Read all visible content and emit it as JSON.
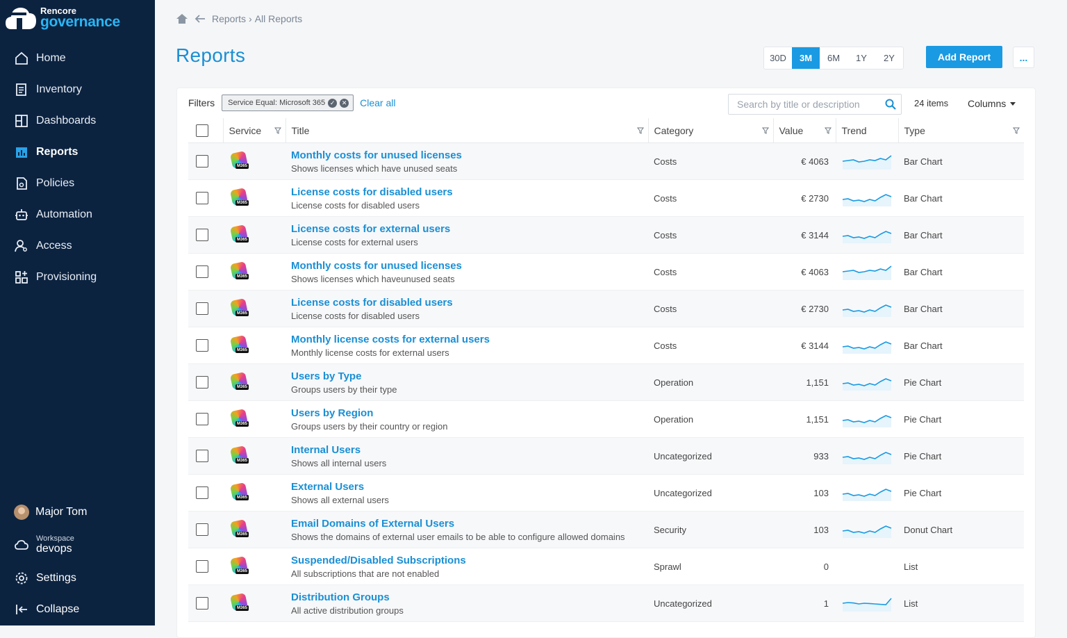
{
  "app": {
    "brand": "Rencore",
    "product": "governance"
  },
  "sidebar": {
    "items": [
      {
        "label": "Home",
        "icon": "home-icon"
      },
      {
        "label": "Inventory",
        "icon": "inventory-icon"
      },
      {
        "label": "Dashboards",
        "icon": "dashboards-icon"
      },
      {
        "label": "Reports",
        "icon": "reports-icon",
        "active": true
      },
      {
        "label": "Policies",
        "icon": "policies-icon"
      },
      {
        "label": "Automation",
        "icon": "automation-icon"
      },
      {
        "label": "Access",
        "icon": "access-icon"
      },
      {
        "label": "Provisioning",
        "icon": "provisioning-icon"
      }
    ],
    "user": "Major Tom",
    "workspace_label": "Workspace",
    "workspace_name": "devops",
    "settings": "Settings",
    "collapse": "Collapse"
  },
  "breadcrumb": {
    "items": [
      "Reports",
      "All Reports"
    ],
    "separator": "›"
  },
  "page": {
    "title": "Reports",
    "ranges": [
      "30D",
      "3M",
      "6M",
      "1Y",
      "2Y"
    ],
    "active_range": "3M",
    "add_button": "Add Report",
    "more_button": "..."
  },
  "toolbar": {
    "filters_label": "Filters",
    "filter_chip": "Service Equal: Microsoft 365",
    "clear_all": "Clear all",
    "search_placeholder": "Search by title or description",
    "item_count": "24 items",
    "columns_label": "Columns"
  },
  "table": {
    "headers": {
      "service": "Service",
      "title": "Title",
      "category": "Category",
      "value": "Value",
      "trend": "Trend",
      "type": "Type"
    },
    "service_badge": "M365",
    "rows": [
      {
        "title": "Monthly costs for unused licenses",
        "description": "Shows licenses which have unused seats",
        "category": "Costs",
        "value": "€ 4063",
        "type": "Bar Chart",
        "trend": [
          0.5,
          0.55,
          0.6,
          0.45,
          0.5,
          0.6,
          0.55,
          0.7,
          0.6,
          0.9
        ]
      },
      {
        "title": "License costs for disabled users",
        "description": "License costs for disabled users",
        "category": "Costs",
        "value": "€ 2730",
        "type": "Bar Chart",
        "trend": [
          0.4,
          0.45,
          0.3,
          0.35,
          0.25,
          0.4,
          0.3,
          0.55,
          0.75,
          0.6
        ]
      },
      {
        "title": "License costs for external users",
        "description": "License costs for external users",
        "category": "Costs",
        "value": "€ 3144",
        "type": "Bar Chart",
        "trend": [
          0.4,
          0.45,
          0.3,
          0.35,
          0.25,
          0.4,
          0.3,
          0.55,
          0.75,
          0.6
        ]
      },
      {
        "title": "Monthly costs for unused licenses",
        "description": "Shows licenses which haveunused seats",
        "category": "Costs",
        "value": "€ 4063",
        "type": "Bar Chart",
        "trend": [
          0.5,
          0.55,
          0.6,
          0.45,
          0.5,
          0.6,
          0.55,
          0.7,
          0.6,
          0.9
        ]
      },
      {
        "title": "License costs for disabled users",
        "description": "License costs for disabled users",
        "category": "Costs",
        "value": "€ 2730",
        "type": "Bar Chart",
        "trend": [
          0.4,
          0.45,
          0.3,
          0.35,
          0.25,
          0.4,
          0.3,
          0.55,
          0.75,
          0.6
        ]
      },
      {
        "title": "Monthly license costs for external users",
        "description": "Monthly license costs for external users",
        "category": "Costs",
        "value": "€ 3144",
        "type": "Bar Chart",
        "trend": [
          0.4,
          0.45,
          0.3,
          0.35,
          0.25,
          0.4,
          0.3,
          0.55,
          0.75,
          0.6
        ]
      },
      {
        "title": "Users by Type",
        "description": "Groups users by their type",
        "category": "Operation",
        "value": "1,151",
        "type": "Pie Chart",
        "trend": [
          0.4,
          0.45,
          0.3,
          0.35,
          0.25,
          0.4,
          0.3,
          0.55,
          0.75,
          0.6
        ]
      },
      {
        "title": "Users by Region",
        "description": "Groups users by their country or region",
        "category": "Operation",
        "value": "1,151",
        "type": "Pie Chart",
        "trend": [
          0.4,
          0.45,
          0.3,
          0.35,
          0.25,
          0.4,
          0.3,
          0.55,
          0.75,
          0.6
        ]
      },
      {
        "title": "Internal Users",
        "description": "Shows all internal users",
        "category": "Uncategorized",
        "value": "933",
        "type": "Pie Chart",
        "trend": [
          0.4,
          0.45,
          0.3,
          0.35,
          0.25,
          0.4,
          0.3,
          0.55,
          0.75,
          0.6
        ]
      },
      {
        "title": "External Users",
        "description": "Shows all external users",
        "category": "Uncategorized",
        "value": "103",
        "type": "Pie Chart",
        "trend": [
          0.4,
          0.45,
          0.3,
          0.35,
          0.25,
          0.4,
          0.3,
          0.55,
          0.75,
          0.6
        ]
      },
      {
        "title": "Email Domains of External Users",
        "description": "Shows the domains of external user emails to be able to configure allowed domains",
        "category": "Security",
        "value": "103",
        "type": "Donut Chart",
        "trend": [
          0.4,
          0.45,
          0.3,
          0.35,
          0.25,
          0.4,
          0.3,
          0.55,
          0.75,
          0.6
        ]
      },
      {
        "title": "Suspended/Disabled Subscriptions",
        "description": "All subscriptions that are not enabled",
        "category": "Sprawl",
        "value": "0",
        "type": "List",
        "trend": []
      },
      {
        "title": "Distribution Groups",
        "description": "All active distribution groups",
        "category": "Uncategorized",
        "value": "1",
        "type": "List",
        "trend": [
          0.5,
          0.55,
          0.52,
          0.45,
          0.5,
          0.48,
          0.45,
          0.42,
          0.4,
          0.85
        ]
      }
    ]
  },
  "colors": {
    "sidebar_bg": "#0c2340",
    "accent": "#1a9ae2",
    "link": "#1a8fd4"
  }
}
